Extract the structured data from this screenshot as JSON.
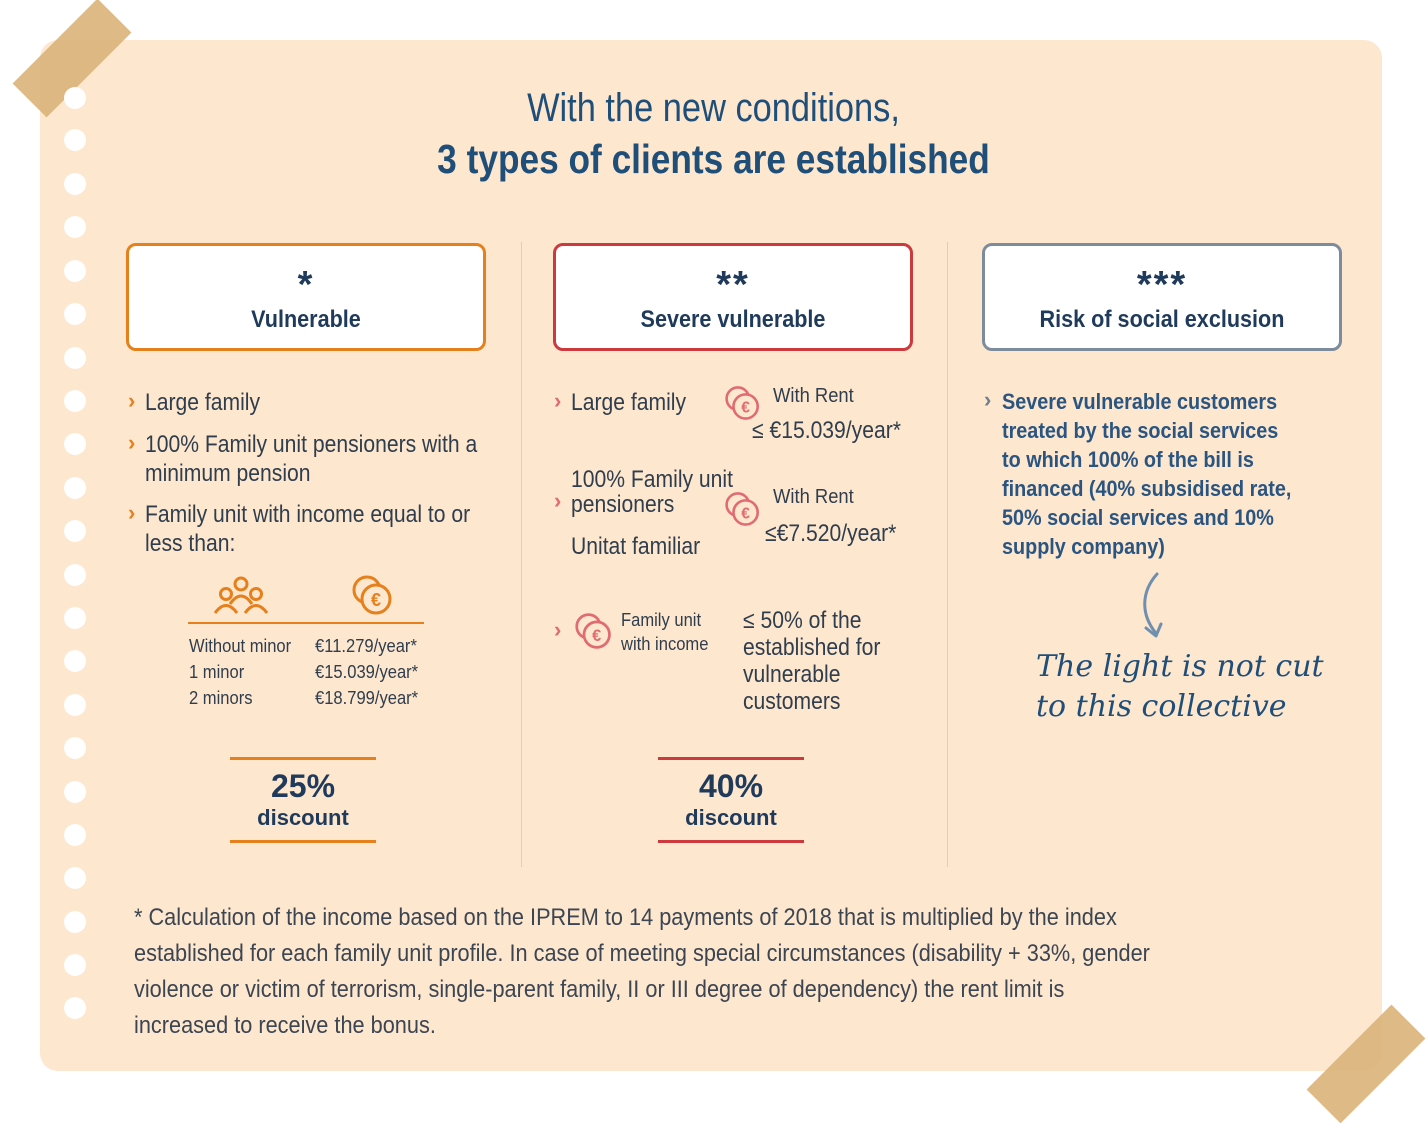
{
  "title": {
    "line1": "With the new conditions,",
    "line2": "3 types of clients are established"
  },
  "colors": {
    "vulnerable": "#e5801c",
    "severe": "#cc3a3e",
    "exclusion": "#7d8c9c",
    "title": "#1f4e79",
    "paper": "#fde7cf"
  },
  "columns": [
    {
      "stars": "*",
      "name": "Vulnerable",
      "items": [
        "Large family",
        "100% Family unit pensioners with a",
        "minimum pension",
        "Family unit with income equal to or",
        "less than:"
      ],
      "table": [
        {
          "label": "Without minor",
          "value": "€11.279/year*"
        },
        {
          "label": "1 minor",
          "value": "€15.039/year*"
        },
        {
          "label": "2 minors",
          "value": "€18.799/year*"
        }
      ],
      "discount_value": "25%",
      "discount_label": "discount"
    },
    {
      "stars": "**",
      "name": "Severe vulnerable",
      "item1": "Large family",
      "rent1_label": "With Rent",
      "rent1_value": "≤ €15.039/year*",
      "item2_line1": "100% Family unit",
      "item2_line2": "pensioners",
      "item2_line3": "Unitat familiar",
      "rent2_label": "With Rent",
      "rent2_value": "≤€7.520/year*",
      "item3_line1": "Family unit",
      "item3_line2": "with income",
      "item3_value": [
        "≤  50% of the",
        "established for",
        "vulnerable",
        "customers"
      ],
      "discount_value": "40%",
      "discount_label": "discount"
    },
    {
      "stars": "***",
      "name": "Risk of social exclusion",
      "text": [
        "Severe vulnerable customers",
        "treated by the social services",
        "to which 100% of the bill is",
        "financed (40% subsidised rate,",
        "50% social services and 10%",
        "supply company)"
      ],
      "note": [
        "The light is not cut",
        "to this collective"
      ]
    }
  ],
  "footnote": [
    "* Calculation of the income based on the IPREM to 14 payments of 2018 that is multiplied by the index",
    "established for each family unit profile. In case of meeting special circumstances (disability + 33%, gender",
    "violence or victim of terrorism, single-parent family, II or III degree of dependency) the rent limit is",
    "increased to receive the bonus."
  ]
}
